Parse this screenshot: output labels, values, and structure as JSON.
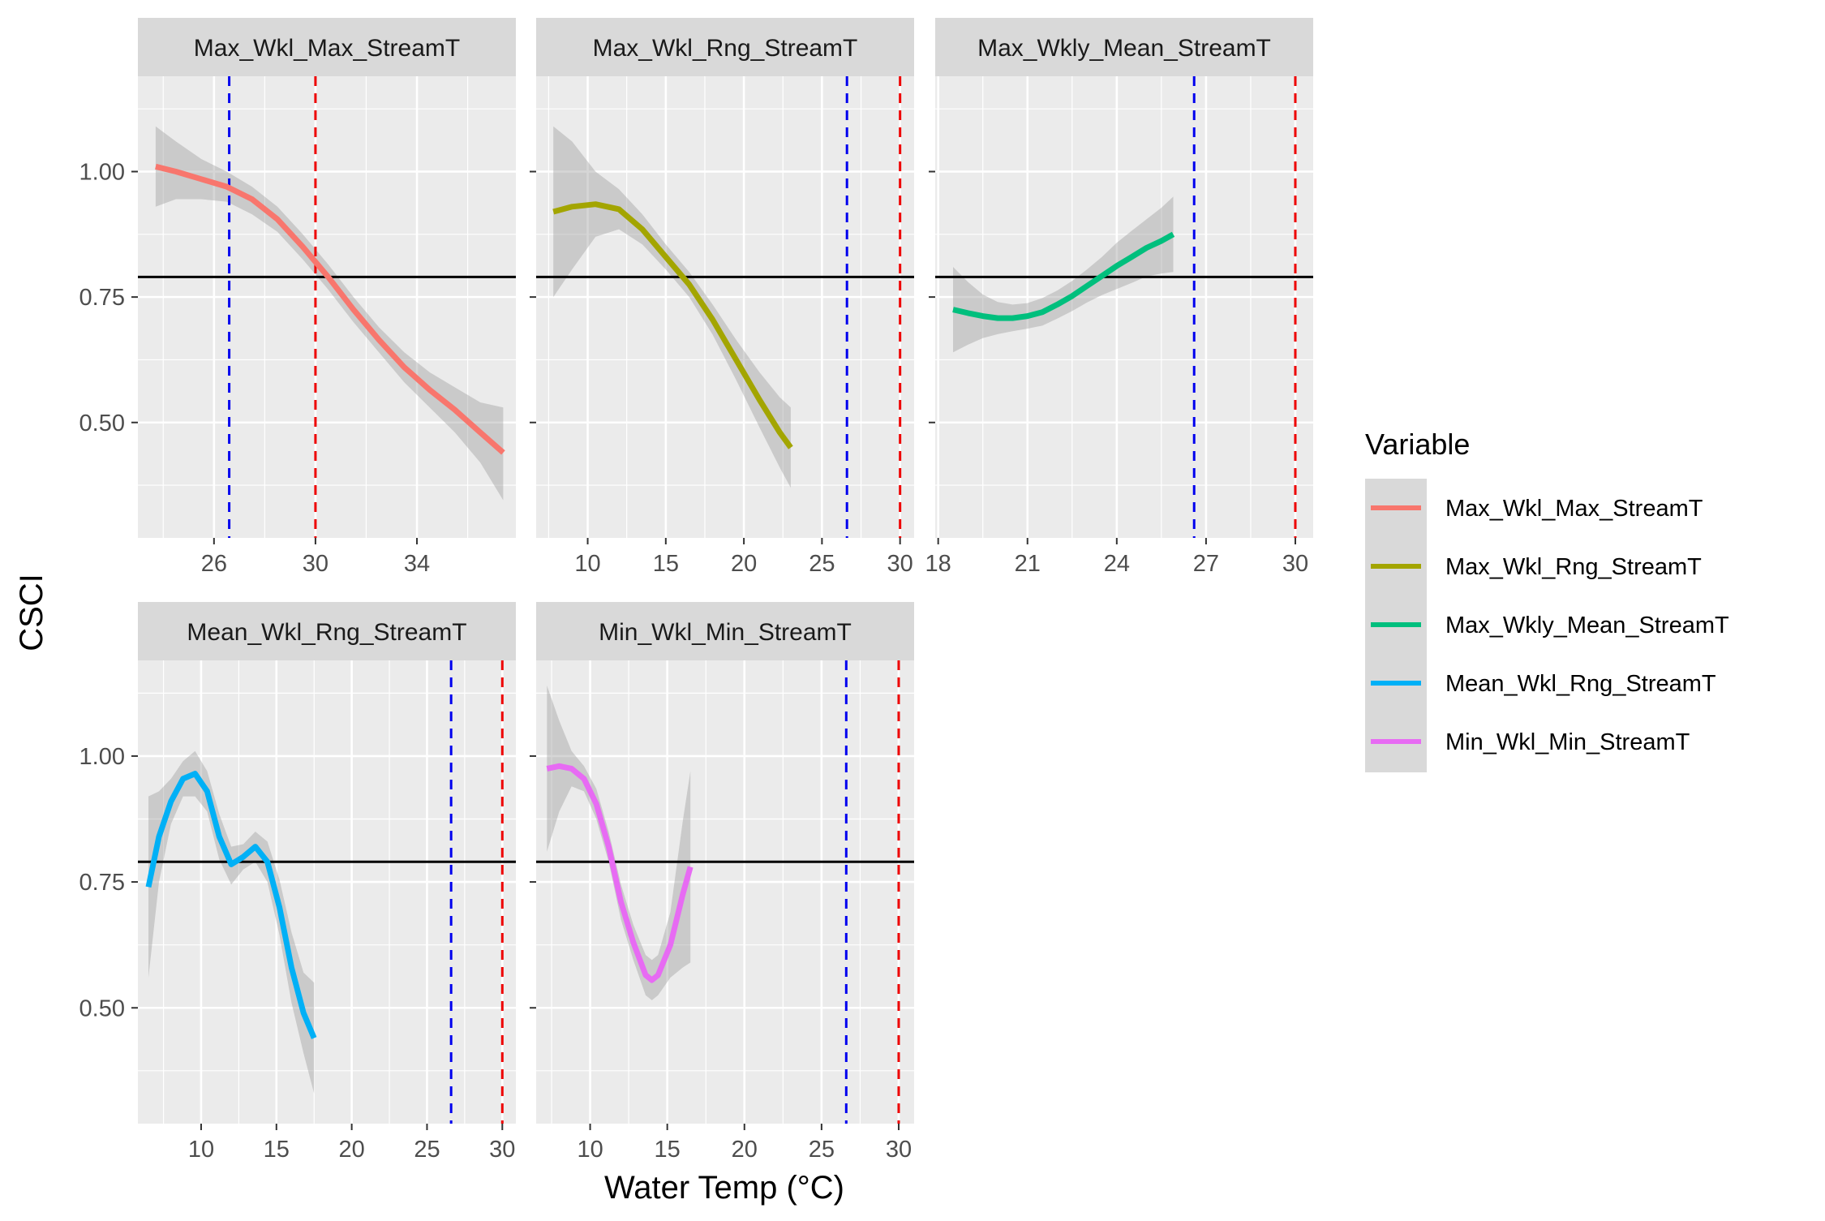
{
  "chart_data": {
    "type": "line",
    "facet_variable": "Variable",
    "xlabel": "Water Temp (°C)",
    "ylabel": "CSCI",
    "ylim": [
      0.27,
      1.19
    ],
    "y_ticks": [
      0.5,
      0.75,
      1.0
    ],
    "y_tick_labels": [
      "0.50",
      "0.75",
      "1.00"
    ],
    "reference_lines": {
      "horizontal_y": 0.79,
      "blue_dashed_x": 26.6,
      "red_dashed_x": 30,
      "colors": {
        "horizontal": "#000000",
        "blue_dashed": "#0000ee",
        "red_dashed": "#ee0000"
      }
    },
    "legend": {
      "title": "Variable",
      "position": "right",
      "entries": [
        {
          "label": "Max_Wkl_Max_StreamT",
          "color": "#f8766d"
        },
        {
          "label": "Max_Wkl_Rng_StreamT",
          "color": "#a3a500"
        },
        {
          "label": "Max_Wkly_Mean_StreamT",
          "color": "#00bf7d"
        },
        {
          "label": "Mean_Wkl_Rng_StreamT",
          "color": "#00b0f6"
        },
        {
          "label": "Min_Wkl_Min_StreamT",
          "color": "#e76bf3"
        }
      ]
    },
    "panels": [
      {
        "title": "Max_Wkl_Max_StreamT",
        "color": "#f8766d",
        "xlim": [
          23.0,
          37.9
        ],
        "x_ticks": [
          26,
          30,
          34
        ],
        "x_tick_labels": [
          "26",
          "30",
          "34"
        ],
        "show_x_axis": true,
        "x": [
          23.7,
          24.5,
          25.5,
          26.5,
          27.5,
          28.5,
          29.5,
          30.5,
          31.5,
          32.5,
          33.5,
          34.5,
          35.5,
          36.5,
          37.4
        ],
        "y": [
          1.01,
          1.0,
          0.985,
          0.97,
          0.945,
          0.905,
          0.85,
          0.79,
          0.725,
          0.665,
          0.61,
          0.565,
          0.525,
          0.48,
          0.44
        ],
        "ci_upper": [
          1.09,
          1.06,
          1.025,
          1.0,
          0.97,
          0.93,
          0.875,
          0.815,
          0.75,
          0.69,
          0.64,
          0.6,
          0.57,
          0.54,
          0.53
        ],
        "ci_lower": [
          0.93,
          0.945,
          0.945,
          0.94,
          0.915,
          0.88,
          0.825,
          0.765,
          0.7,
          0.64,
          0.58,
          0.53,
          0.48,
          0.42,
          0.345
        ]
      },
      {
        "title": "Max_Wkl_Rng_StreamT",
        "color": "#a3a500",
        "xlim": [
          6.7,
          30.9
        ],
        "x_ticks": [
          10,
          15,
          20,
          25,
          30
        ],
        "x_tick_labels": [
          "10",
          "15",
          "20",
          "25",
          "30"
        ],
        "show_x_axis": true,
        "x": [
          7.8,
          9.0,
          10.5,
          12.0,
          13.5,
          15.0,
          16.5,
          18.0,
          19.5,
          21.0,
          22.3,
          23.0
        ],
        "y": [
          0.92,
          0.93,
          0.935,
          0.925,
          0.885,
          0.83,
          0.775,
          0.705,
          0.625,
          0.545,
          0.48,
          0.45
        ],
        "ci_upper": [
          1.09,
          1.06,
          1.0,
          0.965,
          0.915,
          0.855,
          0.8,
          0.735,
          0.665,
          0.6,
          0.55,
          0.53
        ],
        "ci_lower": [
          0.75,
          0.805,
          0.87,
          0.885,
          0.855,
          0.805,
          0.75,
          0.675,
          0.585,
          0.49,
          0.41,
          0.37
        ]
      },
      {
        "title": "Max_Wkly_Mean_StreamT",
        "color": "#00bf7d",
        "xlim": [
          17.9,
          30.6
        ],
        "x_ticks": [
          18,
          21,
          24,
          27,
          30
        ],
        "x_tick_labels": [
          "18",
          "21",
          "24",
          "27",
          "30"
        ],
        "show_x_axis": true,
        "x": [
          18.5,
          19.0,
          19.5,
          20.0,
          20.5,
          21.0,
          21.5,
          22.0,
          22.5,
          23.0,
          23.5,
          24.0,
          24.5,
          25.0,
          25.5,
          25.9
        ],
        "y": [
          0.725,
          0.718,
          0.712,
          0.708,
          0.708,
          0.712,
          0.72,
          0.735,
          0.752,
          0.772,
          0.792,
          0.812,
          0.83,
          0.848,
          0.862,
          0.875
        ],
        "ci_upper": [
          0.81,
          0.78,
          0.755,
          0.74,
          0.735,
          0.738,
          0.748,
          0.763,
          0.782,
          0.805,
          0.83,
          0.858,
          0.882,
          0.905,
          0.928,
          0.95
        ],
        "ci_lower": [
          0.64,
          0.655,
          0.668,
          0.676,
          0.682,
          0.687,
          0.693,
          0.707,
          0.722,
          0.739,
          0.754,
          0.766,
          0.778,
          0.791,
          0.797,
          0.8
        ]
      },
      {
        "title": "Mean_Wkl_Rng_StreamT",
        "color": "#00b0f6",
        "xlim": [
          5.8,
          30.9
        ],
        "x_ticks": [
          10,
          15,
          20,
          25,
          30
        ],
        "x_tick_labels": [
          "10",
          "15",
          "20",
          "25",
          "30"
        ],
        "show_x_axis": true,
        "x": [
          6.5,
          7.2,
          8.0,
          8.8,
          9.6,
          10.4,
          11.2,
          12.0,
          12.8,
          13.6,
          14.4,
          15.2,
          16.0,
          16.8,
          17.5
        ],
        "y": [
          0.74,
          0.84,
          0.91,
          0.955,
          0.965,
          0.93,
          0.84,
          0.785,
          0.8,
          0.82,
          0.79,
          0.7,
          0.58,
          0.49,
          0.44
        ],
        "ci_upper": [
          0.92,
          0.93,
          0.955,
          0.99,
          1.01,
          0.97,
          0.885,
          0.82,
          0.825,
          0.85,
          0.83,
          0.755,
          0.65,
          0.57,
          0.55
        ],
        "ci_lower": [
          0.56,
          0.75,
          0.865,
          0.92,
          0.92,
          0.89,
          0.795,
          0.745,
          0.775,
          0.79,
          0.75,
          0.645,
          0.51,
          0.41,
          0.33
        ]
      },
      {
        "title": "Min_Wkl_Min_StreamT",
        "color": "#e76bf3",
        "xlim": [
          6.5,
          31.0
        ],
        "x_ticks": [
          10,
          15,
          20,
          25,
          30
        ],
        "x_tick_labels": [
          "10",
          "15",
          "20",
          "25",
          "30"
        ],
        "show_x_axis": true,
        "x": [
          7.2,
          8.0,
          8.8,
          9.6,
          10.4,
          11.2,
          12.0,
          12.8,
          13.6,
          14.0,
          14.4,
          15.2,
          16.0,
          16.5
        ],
        "y": [
          0.975,
          0.98,
          0.975,
          0.955,
          0.905,
          0.82,
          0.71,
          0.63,
          0.565,
          0.555,
          0.565,
          0.625,
          0.725,
          0.78
        ],
        "ci_upper": [
          1.14,
          1.07,
          1.01,
          0.98,
          0.935,
          0.85,
          0.745,
          0.665,
          0.605,
          0.595,
          0.605,
          0.69,
          0.87,
          0.97
        ],
        "ci_lower": [
          0.81,
          0.89,
          0.94,
          0.93,
          0.875,
          0.79,
          0.675,
          0.595,
          0.525,
          0.515,
          0.525,
          0.56,
          0.58,
          0.59
        ]
      }
    ]
  }
}
